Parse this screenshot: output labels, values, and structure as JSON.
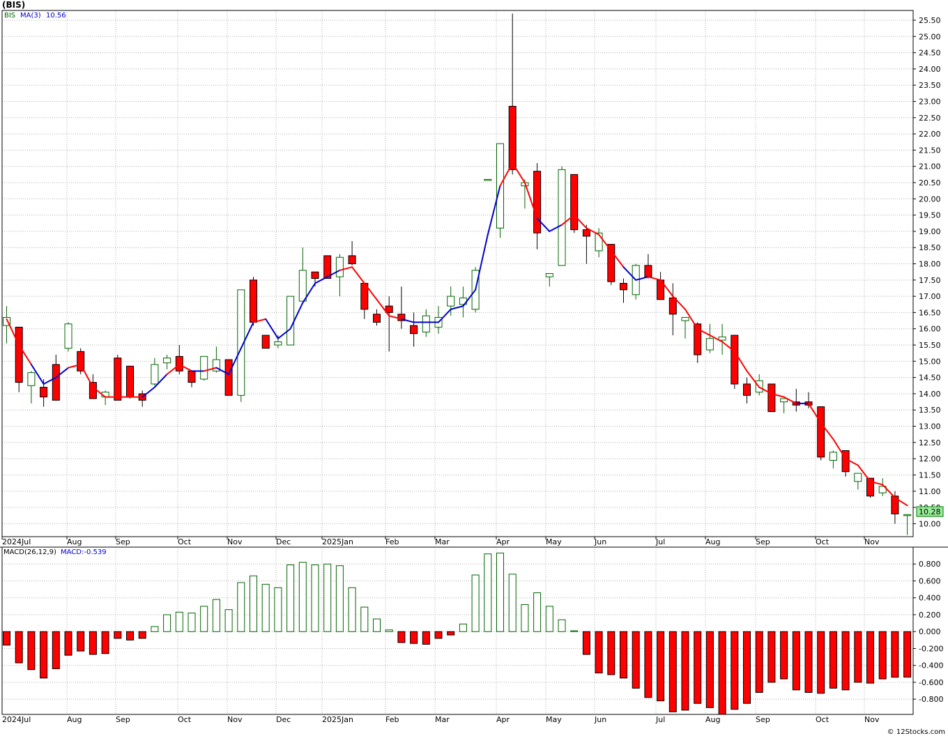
{
  "title": "(BIS)",
  "footer": "© 12Stocks.com",
  "colors": {
    "up": "#006400",
    "down": "#ff0000",
    "ma_up": "#0000cc",
    "ma_down": "#ff0000",
    "grid": "#b0b0b0"
  },
  "price_legend": {
    "symbol": "BIS",
    "ma_label": "MA(3)",
    "ma_value": "10.56"
  },
  "last_price_label": "10.28",
  "macd_legend": {
    "label": "MACD(26,12,9)",
    "value_label": "MACD:-0.539"
  },
  "month_labels": [
    "2024Jul",
    "Aug",
    "Sep",
    "Oct",
    "Nov",
    "Dec",
    "2025Jan",
    "Feb",
    "Mar",
    "Apr",
    "May",
    "Jun",
    "Jul",
    "Aug",
    "Sep",
    "Oct",
    "Nov"
  ],
  "chart_data": [
    {
      "type": "candlestick",
      "series_name": "BIS weekly",
      "ylim": [
        9.6,
        25.8
      ],
      "yticks": [
        "10.00",
        "10.50",
        "11.00",
        "11.50",
        "12.00",
        "12.50",
        "13.00",
        "13.50",
        "14.00",
        "14.50",
        "15.00",
        "15.50",
        "16.00",
        "16.50",
        "17.00",
        "17.50",
        "18.00",
        "18.50",
        "19.00",
        "19.50",
        "20.00",
        "20.50",
        "21.00",
        "21.50",
        "22.00",
        "22.50",
        "23.00",
        "23.50",
        "24.00",
        "24.50",
        "25.00",
        "25.50"
      ],
      "ohlc": [
        [
          16.1,
          16.7,
          15.55,
          16.35
        ],
        [
          16.05,
          16.05,
          14.05,
          14.35
        ],
        [
          14.25,
          14.7,
          13.7,
          14.65
        ],
        [
          14.2,
          14.45,
          13.6,
          13.9
        ],
        [
          14.9,
          15.2,
          13.8,
          13.8
        ],
        [
          15.4,
          16.2,
          15.3,
          16.15
        ],
        [
          15.3,
          15.4,
          14.6,
          14.7
        ],
        [
          14.35,
          14.6,
          13.85,
          13.85
        ],
        [
          13.9,
          14.1,
          13.65,
          14.05
        ],
        [
          15.1,
          15.2,
          13.8,
          13.8
        ],
        [
          14.85,
          14.85,
          13.85,
          13.9
        ],
        [
          14.0,
          14.1,
          13.6,
          13.8
        ],
        [
          14.3,
          15.1,
          14.25,
          14.9
        ],
        [
          14.95,
          15.2,
          14.75,
          15.1
        ],
        [
          15.15,
          15.5,
          14.6,
          14.7
        ],
        [
          14.7,
          14.7,
          14.2,
          14.35
        ],
        [
          14.45,
          15.15,
          14.4,
          15.15
        ],
        [
          14.7,
          15.45,
          14.65,
          15.05
        ],
        [
          15.05,
          15.05,
          13.95,
          13.95
        ],
        [
          13.95,
          17.2,
          13.75,
          17.2
        ],
        [
          17.5,
          17.6,
          16.1,
          16.2
        ],
        [
          15.8,
          15.8,
          15.4,
          15.4
        ],
        [
          15.5,
          15.8,
          15.4,
          15.6
        ],
        [
          15.5,
          17.0,
          15.5,
          17.0
        ],
        [
          16.85,
          18.5,
          16.85,
          17.8
        ],
        [
          17.75,
          17.75,
          17.3,
          17.55
        ],
        [
          18.25,
          18.25,
          17.6,
          17.55
        ],
        [
          17.6,
          18.3,
          17.0,
          18.2
        ],
        [
          18.25,
          18.7,
          17.95,
          18.0
        ],
        [
          17.4,
          17.4,
          16.3,
          16.6
        ],
        [
          16.45,
          16.6,
          16.1,
          16.2
        ],
        [
          16.7,
          17.0,
          15.3,
          16.5
        ],
        [
          16.45,
          17.3,
          16.0,
          16.25
        ],
        [
          16.1,
          16.5,
          15.45,
          15.85
        ],
        [
          15.9,
          16.6,
          15.75,
          16.4
        ],
        [
          16.05,
          16.7,
          15.85,
          16.35
        ],
        [
          16.7,
          17.3,
          16.4,
          17.0
        ],
        [
          16.75,
          17.3,
          16.35,
          16.95
        ],
        [
          16.6,
          17.9,
          16.5,
          17.8
        ],
        [
          20.6,
          20.6,
          20.6,
          20.6
        ],
        [
          19.1,
          21.7,
          18.8,
          21.7
        ],
        [
          22.85,
          25.7,
          20.75,
          20.9
        ],
        [
          20.4,
          20.6,
          19.7,
          20.5
        ],
        [
          20.85,
          21.1,
          18.45,
          18.95
        ],
        [
          17.6,
          17.65,
          17.3,
          17.7
        ],
        [
          17.95,
          21.0,
          17.95,
          20.9
        ],
        [
          20.75,
          20.75,
          18.95,
          19.05
        ],
        [
          19.05,
          19.2,
          18.0,
          18.85
        ],
        [
          18.4,
          19.1,
          18.2,
          18.95
        ],
        [
          18.6,
          18.6,
          17.35,
          17.45
        ],
        [
          17.4,
          17.55,
          16.8,
          17.2
        ],
        [
          17.05,
          18.0,
          16.9,
          17.95
        ],
        [
          17.95,
          18.3,
          17.55,
          17.6
        ],
        [
          17.5,
          17.75,
          16.9,
          16.9
        ],
        [
          16.95,
          17.4,
          15.8,
          16.45
        ],
        [
          16.25,
          16.3,
          15.7,
          16.35
        ],
        [
          16.15,
          16.2,
          14.95,
          15.2
        ],
        [
          15.35,
          16.15,
          15.25,
          15.7
        ],
        [
          15.65,
          16.15,
          15.2,
          15.75
        ],
        [
          15.8,
          15.8,
          14.15,
          14.3
        ],
        [
          14.3,
          14.5,
          13.7,
          13.95
        ],
        [
          14.05,
          14.6,
          13.95,
          14.4
        ],
        [
          14.3,
          14.3,
          13.45,
          13.45
        ],
        [
          13.75,
          13.85,
          13.4,
          13.85
        ],
        [
          13.75,
          14.15,
          13.45,
          13.65
        ],
        [
          13.75,
          14.05,
          13.55,
          13.65
        ],
        [
          13.6,
          13.6,
          11.95,
          12.05
        ],
        [
          11.95,
          12.25,
          11.7,
          12.2
        ],
        [
          12.25,
          12.25,
          11.45,
          11.6
        ],
        [
          11.3,
          11.5,
          11.05,
          11.55
        ],
        [
          11.4,
          11.4,
          10.8,
          10.85
        ],
        [
          10.95,
          11.4,
          10.85,
          11.15
        ],
        [
          10.85,
          11.0,
          10.0,
          10.3
        ],
        [
          10.25,
          10.28,
          9.65,
          10.28
        ]
      ],
      "ma3": [
        16.3,
        15.5,
        14.9,
        14.3,
        14.5,
        14.8,
        14.9,
        14.2,
        13.9,
        13.9,
        13.9,
        13.9,
        14.2,
        14.6,
        14.9,
        14.7,
        14.7,
        14.8,
        14.6,
        15.4,
        16.2,
        16.3,
        15.7,
        16.0,
        16.8,
        17.4,
        17.6,
        17.8,
        17.9,
        17.4,
        16.9,
        16.4,
        16.3,
        16.2,
        16.2,
        16.2,
        16.6,
        16.7,
        17.2,
        18.9,
        20.4,
        21.1,
        20.5,
        19.4,
        19.0,
        19.2,
        19.5,
        19.1,
        18.9,
        18.4,
        17.9,
        17.5,
        17.6,
        17.5,
        17.0,
        16.6,
        16.0,
        15.8,
        15.6,
        15.3,
        14.7,
        14.2,
        14.0,
        13.9,
        13.7,
        13.7,
        13.1,
        12.6,
        12.0,
        11.8,
        11.3,
        11.2,
        10.8,
        10.56
      ],
      "ma_colors": [
        "red",
        "red",
        "red",
        "blue",
        "blue",
        "blue",
        "red",
        "red",
        "red",
        "red",
        "red",
        "red",
        "blue",
        "blue",
        "red",
        "red",
        "blue",
        "red",
        "blue",
        "blue",
        "blue",
        "red",
        "blue",
        "blue",
        "blue",
        "blue",
        "blue",
        "blue",
        "red",
        "red",
        "red",
        "red",
        "red",
        "blue",
        "blue",
        "blue",
        "blue",
        "blue",
        "blue",
        "blue",
        "blue",
        "red",
        "red",
        "red",
        "blue",
        "blue",
        "red",
        "red",
        "red",
        "red",
        "red",
        "blue",
        "blue",
        "red",
        "red",
        "red",
        "red",
        "red",
        "red",
        "red",
        "red",
        "red",
        "red",
        "red",
        "red",
        "blue",
        "red",
        "red",
        "red",
        "red",
        "red",
        "red",
        "red",
        "red"
      ]
    },
    {
      "type": "bar",
      "series_name": "MACD(26,12,9)",
      "ylim": [
        -0.98,
        1.0
      ],
      "yticks": [
        "-0.800",
        "-0.600",
        "-0.400",
        "-0.200",
        "0.000",
        "0.200",
        "0.400",
        "0.600",
        "0.800"
      ],
      "values": [
        -0.16,
        -0.37,
        -0.45,
        -0.55,
        -0.44,
        -0.28,
        -0.23,
        -0.27,
        -0.26,
        -0.08,
        -0.1,
        -0.08,
        0.06,
        0.2,
        0.23,
        0.22,
        0.3,
        0.38,
        0.26,
        0.58,
        0.66,
        0.56,
        0.52,
        0.79,
        0.82,
        0.79,
        0.8,
        0.78,
        0.52,
        0.29,
        0.15,
        0.02,
        -0.13,
        -0.14,
        -0.15,
        -0.08,
        -0.04,
        0.09,
        0.67,
        0.92,
        0.93,
        0.68,
        0.32,
        0.46,
        0.3,
        0.14,
        0.01,
        -0.27,
        -0.49,
        -0.51,
        -0.55,
        -0.67,
        -0.78,
        -0.82,
        -0.95,
        -0.93,
        -0.85,
        -0.9,
        -0.98,
        -0.92,
        -0.85,
        -0.72,
        -0.6,
        -0.56,
        -0.69,
        -0.72,
        -0.73,
        -0.67,
        -0.69,
        -0.6,
        -0.61,
        -0.56,
        -0.54,
        -0.539
      ]
    }
  ]
}
